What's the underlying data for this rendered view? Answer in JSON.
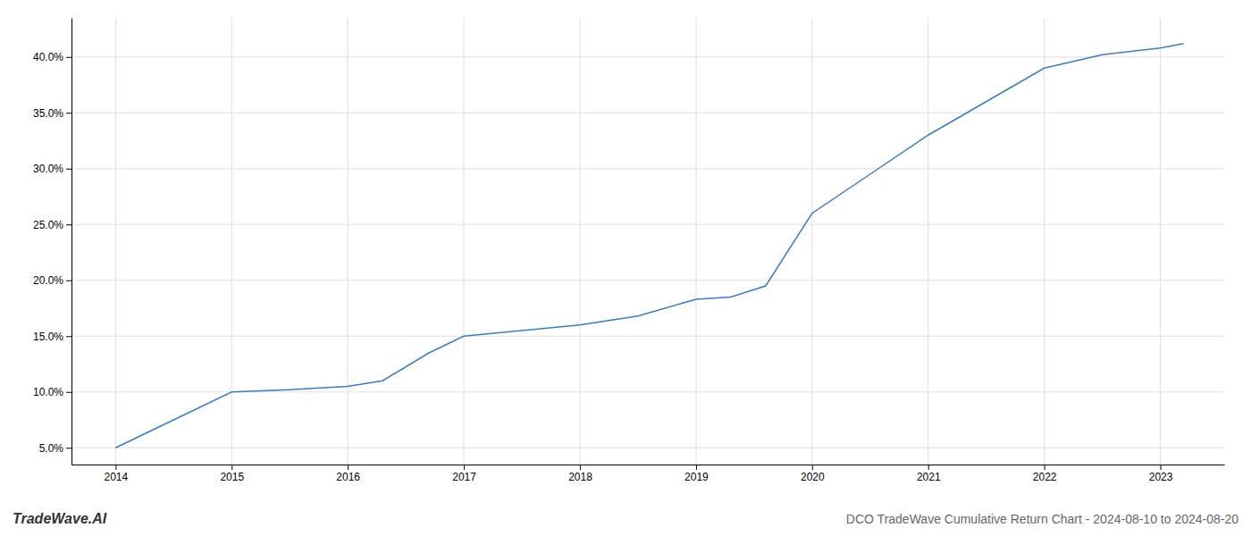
{
  "chart_data": {
    "type": "line",
    "title": "DCO TradeWave Cumulative Return Chart - 2024-08-10 to 2024-08-20",
    "annotations": [
      "TradeWave.AI"
    ],
    "x": [
      2014.0,
      2014.6,
      2015.0,
      2015.5,
      2016.0,
      2016.3,
      2016.7,
      2017.0,
      2017.5,
      2018.0,
      2018.5,
      2019.0,
      2019.3,
      2019.6,
      2020.0,
      2020.5,
      2021.0,
      2021.5,
      2022.0,
      2022.5,
      2023.0,
      2023.2
    ],
    "values": [
      5.0,
      8.0,
      10.0,
      10.2,
      10.5,
      11.0,
      13.5,
      15.0,
      15.5,
      16.0,
      16.8,
      18.3,
      18.5,
      19.5,
      26.0,
      29.5,
      33.0,
      36.0,
      39.0,
      40.2,
      40.8,
      41.2
    ],
    "color": "#3a7ebf",
    "xlim": [
      2013.62,
      2023.55
    ],
    "ylim": [
      3.5,
      43.5
    ],
    "xticks": [
      2014,
      2015,
      2016,
      2017,
      2018,
      2019,
      2020,
      2021,
      2022,
      2023
    ],
    "yticks": [
      {
        "value": 5.0,
        "label": "5.0%"
      },
      {
        "value": 10.0,
        "label": "10.0%"
      },
      {
        "value": 15.0,
        "label": "15.0%"
      },
      {
        "value": 20.0,
        "label": "20.0%"
      },
      {
        "value": 25.0,
        "label": "25.0%"
      },
      {
        "value": 30.0,
        "label": "30.0%"
      },
      {
        "value": 35.0,
        "label": "35.0%"
      },
      {
        "value": 40.0,
        "label": "40.0%"
      }
    ],
    "grid": true
  }
}
